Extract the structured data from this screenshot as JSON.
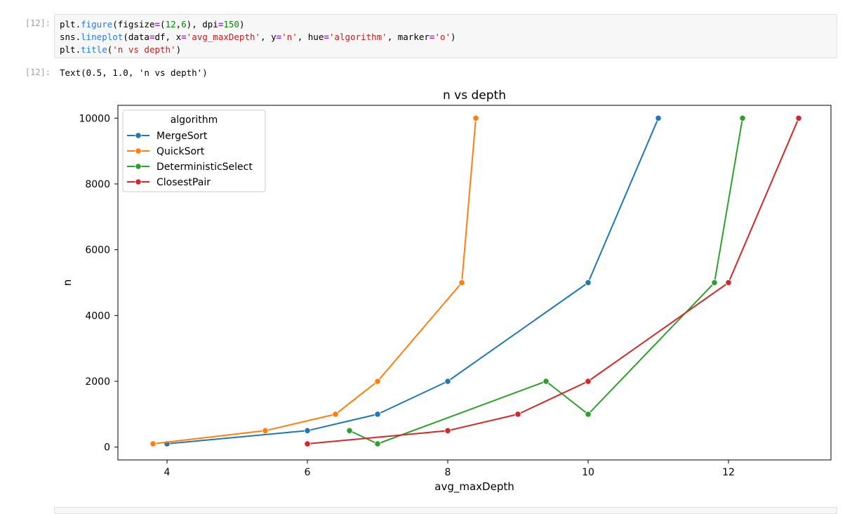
{
  "cell_input": {
    "prompt": "[12]:",
    "lines": [
      [
        {
          "t": "plt",
          "c": ""
        },
        {
          "t": ".",
          "c": ""
        },
        {
          "t": "figure",
          "c": "fn"
        },
        {
          "t": "(figsize",
          "c": ""
        },
        {
          "t": "=",
          "c": "op"
        },
        {
          "t": "(",
          "c": ""
        },
        {
          "t": "12",
          "c": "num"
        },
        {
          "t": ",",
          "c": ""
        },
        {
          "t": "6",
          "c": "num"
        },
        {
          "t": "), dpi",
          "c": ""
        },
        {
          "t": "=",
          "c": "op"
        },
        {
          "t": "150",
          "c": "num"
        },
        {
          "t": ")",
          "c": ""
        }
      ],
      [
        {
          "t": "sns",
          "c": ""
        },
        {
          "t": ".",
          "c": ""
        },
        {
          "t": "lineplot",
          "c": "fn"
        },
        {
          "t": "(data",
          "c": ""
        },
        {
          "t": "=",
          "c": "op"
        },
        {
          "t": "df, x",
          "c": ""
        },
        {
          "t": "=",
          "c": "op"
        },
        {
          "t": "'avg_maxDepth'",
          "c": "str"
        },
        {
          "t": ", y",
          "c": ""
        },
        {
          "t": "=",
          "c": "op"
        },
        {
          "t": "'n'",
          "c": "str"
        },
        {
          "t": ", hue",
          "c": ""
        },
        {
          "t": "=",
          "c": "op"
        },
        {
          "t": "'algorithm'",
          "c": "str"
        },
        {
          "t": ", marker",
          "c": ""
        },
        {
          "t": "=",
          "c": "op"
        },
        {
          "t": "'o'",
          "c": "str"
        },
        {
          "t": ")",
          "c": ""
        }
      ],
      [
        {
          "t": "plt",
          "c": ""
        },
        {
          "t": ".",
          "c": ""
        },
        {
          "t": "title",
          "c": "fn"
        },
        {
          "t": "(",
          "c": ""
        },
        {
          "t": "'n vs depth'",
          "c": "str"
        },
        {
          "t": ")",
          "c": ""
        }
      ]
    ]
  },
  "cell_output": {
    "prompt": "[12]:",
    "text": "Text(0.5, 1.0, 'n vs depth')"
  },
  "chart_data": {
    "type": "line",
    "title": "n vs depth",
    "xlabel": "avg_maxDepth",
    "ylabel": "n",
    "xlim": [
      3.3,
      13.46
    ],
    "ylim": [
      -390,
      10390
    ],
    "xticks": [
      4,
      6,
      8,
      10,
      12
    ],
    "yticks": [
      0,
      2000,
      4000,
      6000,
      8000,
      10000
    ],
    "grid": false,
    "legend": {
      "title": "algorithm",
      "placement": "top-left"
    },
    "series": [
      {
        "name": "MergeSort",
        "color": "#1f77b4",
        "x": [
          4,
          6,
          7,
          8,
          10,
          11
        ],
        "y": [
          100,
          500,
          1000,
          2000,
          5000,
          10000
        ]
      },
      {
        "name": "QuickSort",
        "color": "#ff7f0e",
        "x": [
          3.8,
          5.4,
          6.4,
          7,
          8.2,
          8.4
        ],
        "y": [
          100,
          500,
          1000,
          2000,
          5000,
          10000
        ]
      },
      {
        "name": "DeterministicSelect",
        "color": "#2ca02c",
        "x": [
          6.6,
          7,
          9.4,
          10,
          11.8,
          12.2
        ],
        "y": [
          500,
          100,
          2000,
          1000,
          5000,
          10000
        ]
      },
      {
        "name": "ClosestPair",
        "color": "#d62728",
        "x": [
          6,
          8,
          9,
          10,
          12,
          13
        ],
        "y": [
          100,
          500,
          1000,
          2000,
          5000,
          10000
        ]
      }
    ]
  }
}
